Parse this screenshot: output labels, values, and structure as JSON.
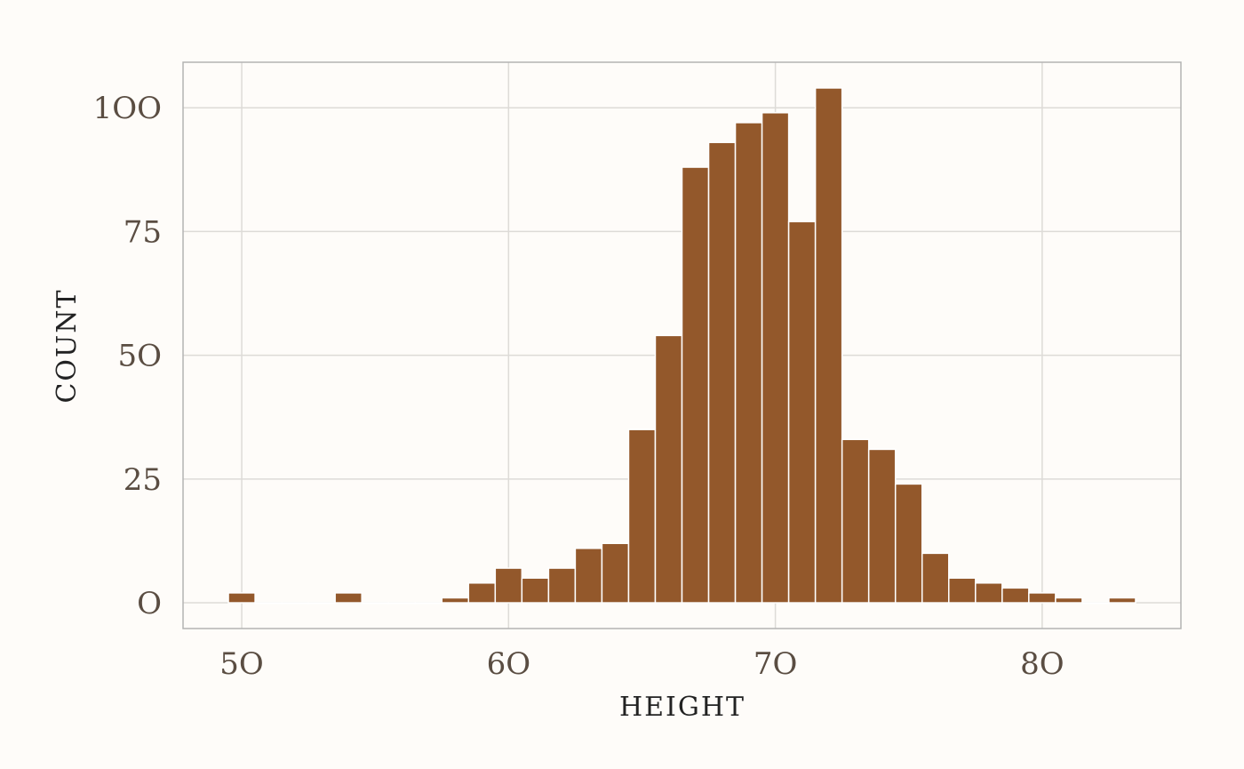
{
  "chart_data": {
    "type": "bar",
    "xlabel": "HEIGHT",
    "ylabel": "COUNT",
    "xlim": [
      47.8,
      85.2
    ],
    "ylim": [
      -5.2,
      109.2
    ],
    "x_ticks": [
      {
        "value": 50,
        "label": "5O"
      },
      {
        "value": 60,
        "label": "6O"
      },
      {
        "value": 70,
        "label": "7O"
      },
      {
        "value": 80,
        "label": "8O"
      }
    ],
    "y_ticks": [
      {
        "value": 0,
        "label": "O"
      },
      {
        "value": 25,
        "label": "25"
      },
      {
        "value": 50,
        "label": "5O"
      },
      {
        "value": 75,
        "label": "75"
      },
      {
        "value": 100,
        "label": "1OO"
      }
    ],
    "bin_width": 1,
    "bin_centers": [
      50,
      51,
      52,
      53,
      54,
      55,
      56,
      57,
      58,
      59,
      60,
      61,
      62,
      63,
      64,
      65,
      66,
      67,
      68,
      69,
      70,
      71,
      72,
      73,
      74,
      75,
      76,
      77,
      78,
      79,
      80,
      81,
      82,
      83
    ],
    "values": [
      2,
      0,
      0,
      0,
      2,
      0,
      0,
      0,
      1,
      4,
      7,
      5,
      7,
      11,
      12,
      35,
      54,
      88,
      93,
      97,
      99,
      77,
      104,
      33,
      31,
      24,
      10,
      5,
      4,
      3,
      2,
      1,
      0,
      1
    ],
    "grid": true,
    "colors": {
      "bar": "#93582b",
      "bar_stroke": "#ffffff",
      "grid": "#dddbd7",
      "panel_border": "#b3b3b3",
      "background": "#fefcf9"
    }
  }
}
